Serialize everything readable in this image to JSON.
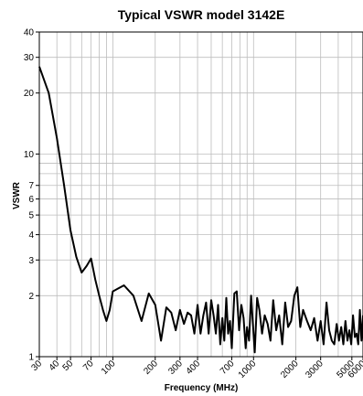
{
  "chart_data": {
    "type": "line",
    "title": "Typical VSWR model 3142E",
    "xlabel": "Frequency (MHz)",
    "ylabel": "VSWR",
    "x_scale": "log",
    "y_scale": "log",
    "xlim": [
      30,
      6000
    ],
    "ylim": [
      1,
      40
    ],
    "grid": true,
    "x_tick_labels": [
      "30",
      "40",
      "50",
      "70",
      "100",
      "200",
      "300",
      "400",
      "700",
      "1000",
      "2000",
      "3000",
      "5000",
      "6000"
    ],
    "y_tick_labels": [
      "1",
      "2",
      "3",
      "4",
      "5",
      "6",
      "7",
      "10",
      "20",
      "30",
      "40"
    ],
    "line_color": "#000000",
    "series": [
      {
        "points": [
          [
            30,
            27
          ],
          [
            35,
            20
          ],
          [
            40,
            12
          ],
          [
            45,
            7
          ],
          [
            50,
            4.2
          ],
          [
            55,
            3.1
          ],
          [
            60,
            2.6
          ],
          [
            65,
            2.8
          ],
          [
            70,
            3.05
          ],
          [
            75,
            2.4
          ],
          [
            80,
            2.0
          ],
          [
            85,
            1.7
          ],
          [
            90,
            1.5
          ],
          [
            95,
            1.7
          ],
          [
            100,
            2.1
          ],
          [
            120,
            2.25
          ],
          [
            140,
            2.0
          ],
          [
            160,
            1.5
          ],
          [
            180,
            2.05
          ],
          [
            200,
            1.8
          ],
          [
            220,
            1.2
          ],
          [
            240,
            1.75
          ],
          [
            260,
            1.65
          ],
          [
            280,
            1.35
          ],
          [
            300,
            1.7
          ],
          [
            320,
            1.45
          ],
          [
            340,
            1.65
          ],
          [
            360,
            1.6
          ],
          [
            380,
            1.3
          ],
          [
            400,
            1.8
          ],
          [
            420,
            1.3
          ],
          [
            440,
            1.6
          ],
          [
            460,
            1.85
          ],
          [
            480,
            1.3
          ],
          [
            500,
            1.9
          ],
          [
            520,
            1.6
          ],
          [
            540,
            1.3
          ],
          [
            560,
            1.8
          ],
          [
            580,
            1.15
          ],
          [
            600,
            1.55
          ],
          [
            620,
            1.2
          ],
          [
            640,
            1.95
          ],
          [
            660,
            1.3
          ],
          [
            680,
            1.5
          ],
          [
            700,
            1.1
          ],
          [
            730,
            2.05
          ],
          [
            760,
            2.1
          ],
          [
            790,
            1.35
          ],
          [
            820,
            1.8
          ],
          [
            850,
            1.55
          ],
          [
            880,
            1.1
          ],
          [
            900,
            1.4
          ],
          [
            930,
            1.2
          ],
          [
            960,
            2.0
          ],
          [
            990,
            1.45
          ],
          [
            1020,
            1.05
          ],
          [
            1060,
            1.95
          ],
          [
            1100,
            1.7
          ],
          [
            1150,
            1.3
          ],
          [
            1200,
            1.6
          ],
          [
            1260,
            1.45
          ],
          [
            1320,
            1.2
          ],
          [
            1380,
            1.9
          ],
          [
            1450,
            1.35
          ],
          [
            1520,
            1.6
          ],
          [
            1600,
            1.15
          ],
          [
            1680,
            1.85
          ],
          [
            1760,
            1.4
          ],
          [
            1850,
            1.5
          ],
          [
            1950,
            2.0
          ],
          [
            2050,
            2.2
          ],
          [
            2150,
            1.4
          ],
          [
            2250,
            1.7
          ],
          [
            2400,
            1.5
          ],
          [
            2550,
            1.35
          ],
          [
            2700,
            1.55
          ],
          [
            2850,
            1.2
          ],
          [
            3000,
            1.5
          ],
          [
            3150,
            1.15
          ],
          [
            3300,
            1.85
          ],
          [
            3450,
            1.35
          ],
          [
            3600,
            1.2
          ],
          [
            3750,
            1.15
          ],
          [
            3900,
            1.45
          ],
          [
            4050,
            1.2
          ],
          [
            4200,
            1.4
          ],
          [
            4350,
            1.15
          ],
          [
            4500,
            1.5
          ],
          [
            4650,
            1.2
          ],
          [
            4800,
            1.35
          ],
          [
            4950,
            1.15
          ],
          [
            5100,
            1.6
          ],
          [
            5250,
            1.25
          ],
          [
            5400,
            1.3
          ],
          [
            5550,
            1.15
          ],
          [
            5700,
            1.7
          ],
          [
            5850,
            1.2
          ],
          [
            6000,
            1.6
          ]
        ]
      }
    ]
  }
}
